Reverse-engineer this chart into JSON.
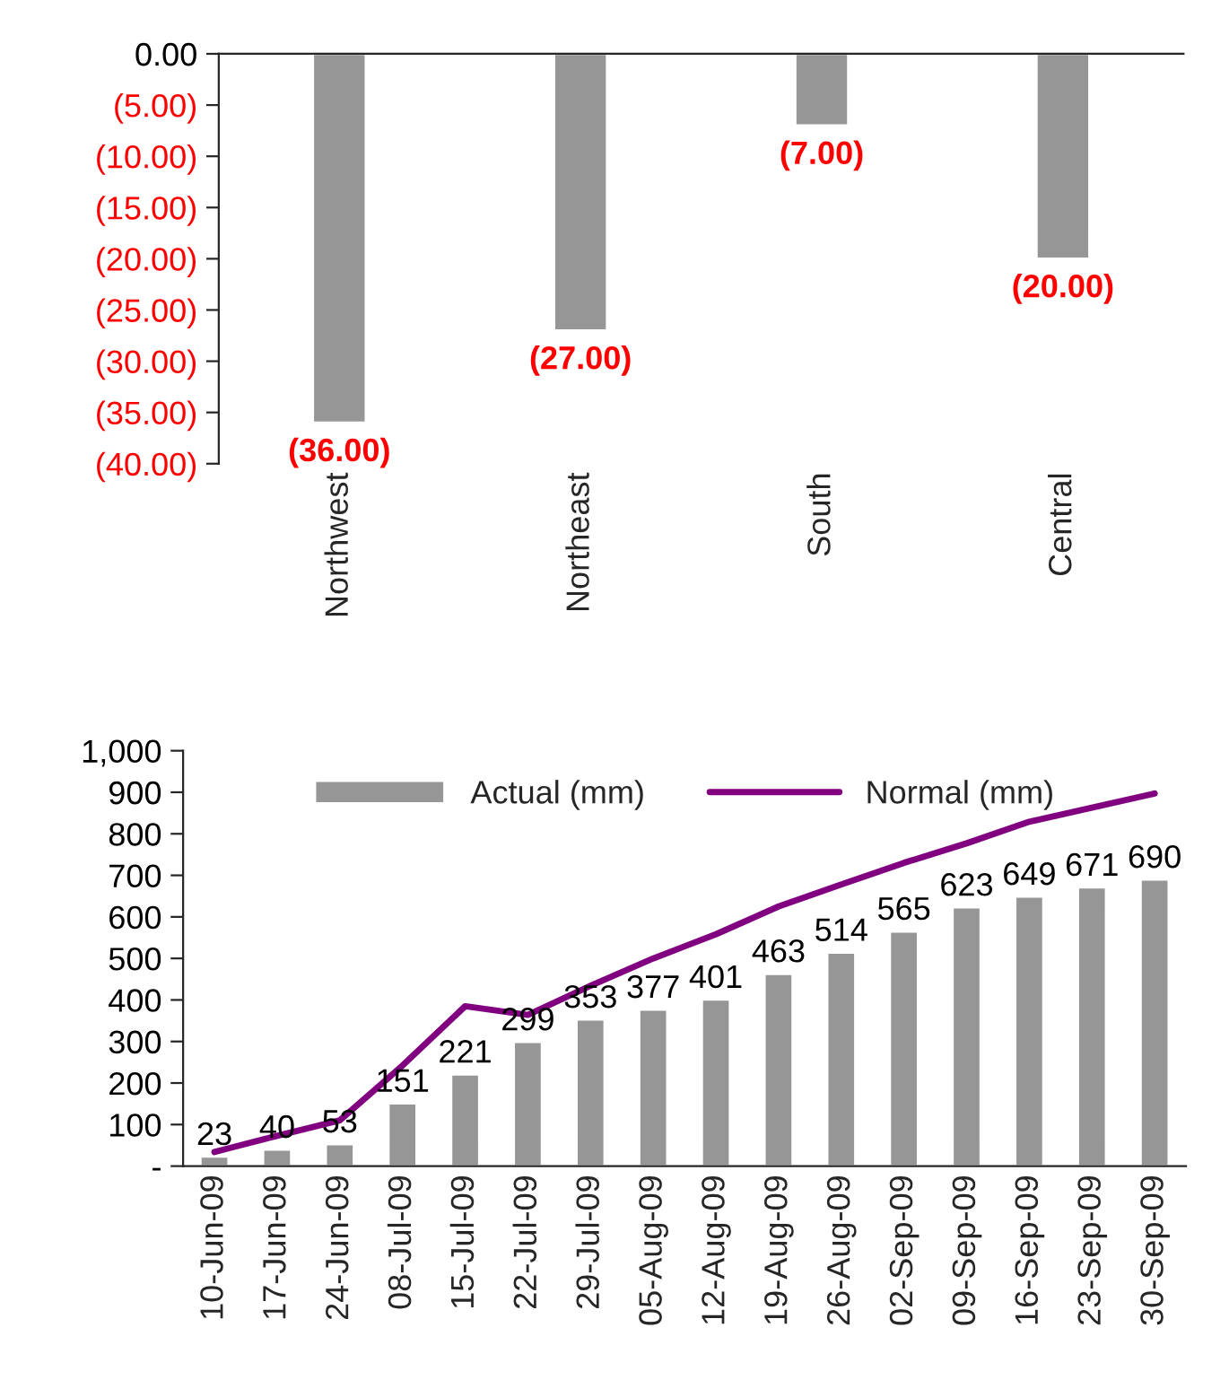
{
  "chart_data": [
    {
      "type": "bar",
      "categories": [
        "Northwest",
        "Northeast",
        "South",
        "Central"
      ],
      "values": [
        -36,
        -27,
        -7,
        -20
      ],
      "color": "#969696",
      "value_labels": [
        "(36.00)",
        "(27.00)",
        "(7.00)",
        "(20.00)"
      ],
      "ylim": [
        -40,
        0
      ],
      "yticks": [
        {
          "value": 0,
          "label": "0.00"
        },
        {
          "value": -5,
          "label": "(5.00)"
        },
        {
          "value": -10,
          "label": "(10.00)"
        },
        {
          "value": -15,
          "label": "(15.00)"
        },
        {
          "value": -20,
          "label": "(20.00)"
        },
        {
          "value": -25,
          "label": "(25.00)"
        },
        {
          "value": -30,
          "label": "(30.00)"
        },
        {
          "value": -35,
          "label": "(35.00)"
        },
        {
          "value": -40,
          "label": "(40.00)"
        }
      ],
      "grid": false,
      "legend": false
    },
    {
      "type": "bar",
      "categories": [
        "10-Jun-09",
        "17-Jun-09",
        "24-Jun-09",
        "08-Jul-09",
        "15-Jul-09",
        "22-Jul-09",
        "29-Jul-09",
        "05-Aug-09",
        "12-Aug-09",
        "19-Aug-09",
        "26-Aug-09",
        "02-Sep-09",
        "09-Sep-09",
        "16-Sep-09",
        "23-Sep-09",
        "30-Sep-09"
      ],
      "series": [
        {
          "name": "Actual (mm)",
          "type": "bar",
          "color": "#969696",
          "data_labels": true,
          "values": [
            23,
            40,
            53,
            151,
            221,
            299,
            353,
            377,
            401,
            463,
            514,
            565,
            623,
            649,
            671,
            690
          ]
        },
        {
          "name": "Normal (mm)",
          "type": "line",
          "color": "#800080",
          "values": [
            34,
            73,
            110,
            242,
            385,
            364,
            434,
            500,
            558,
            625,
            678,
            730,
            777,
            829,
            863,
            897
          ]
        }
      ],
      "ylim": [
        0,
        1000
      ],
      "yticks": [
        {
          "value": 0,
          "label": "-"
        },
        100,
        200,
        300,
        400,
        500,
        600,
        700,
        800,
        900,
        {
          "value": 1000,
          "label": "1,000"
        }
      ],
      "grid": false,
      "legend": "top",
      "marker": "none",
      "line_style": "solid"
    }
  ]
}
